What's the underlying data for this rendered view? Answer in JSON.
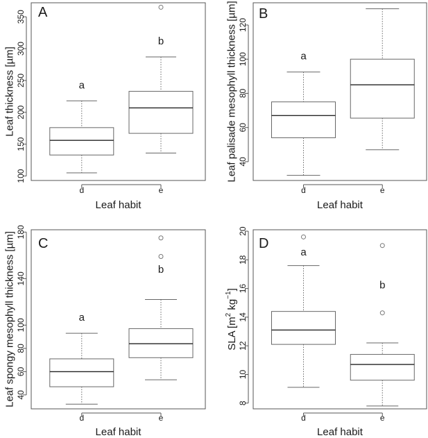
{
  "chart_data": [
    {
      "type": "box",
      "panel": "A",
      "xlabel": "Leaf habit",
      "ylabel": "Leaf thickness [µm]",
      "ylim": [
        93,
        372
      ],
      "yticks": [
        100,
        150,
        200,
        250,
        300,
        350
      ],
      "categories": [
        "d",
        "e"
      ],
      "boxes": [
        {
          "category": "d",
          "whisker_low": 105,
          "q1": 133,
          "median": 156,
          "q3": 176,
          "whisker_high": 218,
          "outliers": [],
          "letter": "a"
        },
        {
          "category": "e",
          "whisker_low": 136,
          "q1": 167,
          "median": 207,
          "q3": 233,
          "whisker_high": 287,
          "outliers": [
            365
          ],
          "letter": "b"
        }
      ]
    },
    {
      "type": "box",
      "panel": "B",
      "xlabel": "Leaf habit",
      "ylabel": "Leaf palisade mesophyll thickness [µm]",
      "ylim": [
        29,
        133
      ],
      "yticks": [
        40,
        60,
        80,
        100,
        120
      ],
      "categories": [
        "d",
        "e"
      ],
      "boxes": [
        {
          "category": "d",
          "whisker_low": 32,
          "q1": 54,
          "median": 67,
          "q3": 75,
          "whisker_high": 92.5,
          "outliers": [],
          "letter": "a"
        },
        {
          "category": "e",
          "whisker_low": 47,
          "q1": 65.5,
          "median": 85,
          "q3": 100,
          "whisker_high": 129.5,
          "outliers": [],
          "letter": "b"
        }
      ]
    },
    {
      "type": "box",
      "panel": "C",
      "xlabel": "Leaf habit",
      "ylabel": "Leaf spongy mesophyll thickness [µm]",
      "ylim": [
        28,
        182
      ],
      "yticks": [
        40,
        60,
        80,
        100,
        140,
        180
      ],
      "categories": [
        "d",
        "e"
      ],
      "boxes": [
        {
          "category": "d",
          "whisker_low": 32,
          "q1": 47,
          "median": 60,
          "q3": 71,
          "whisker_high": 93,
          "outliers": [],
          "letter": "a"
        },
        {
          "category": "e",
          "whisker_low": 53,
          "q1": 72,
          "median": 84,
          "q3": 97,
          "whisker_high": 122,
          "outliers": [
            159,
            175
          ],
          "letter": "b"
        }
      ]
    },
    {
      "type": "box",
      "panel": "D",
      "xlabel": "Leaf habit",
      "ylabel": "SLA [m2 kg-1]",
      "ylabel_parts": {
        "base": "SLA  [m",
        "sup1": "2",
        "mid": " kg",
        "sup2": "−1",
        "end": "]"
      },
      "ylim": [
        7.6,
        20.1
      ],
      "yticks": [
        8,
        10,
        12,
        14,
        16,
        18,
        20
      ],
      "categories": [
        "d",
        "e"
      ],
      "boxes": [
        {
          "category": "d",
          "whisker_low": 9.1,
          "q1": 12.1,
          "median": 13.1,
          "q3": 14.4,
          "whisker_high": 17.6,
          "outliers": [
            19.6
          ],
          "letter": "a"
        },
        {
          "category": "e",
          "whisker_low": 7.8,
          "q1": 9.6,
          "median": 10.7,
          "q3": 11.4,
          "whisker_high": 12.2,
          "outliers": [
            14.3,
            19.0
          ],
          "letter": "b"
        }
      ]
    }
  ]
}
